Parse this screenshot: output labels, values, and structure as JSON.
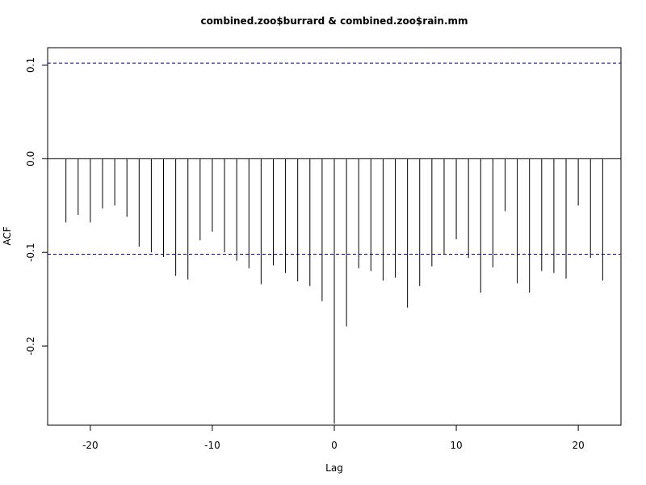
{
  "chart_data": {
    "type": "bar",
    "title": "combined.zoo$burrard & combined.zoo$rain.mm",
    "xlabel": "Lag",
    "ylabel": "ACF",
    "xlim": [
      -23.5,
      23.5
    ],
    "ylim": [
      -0.2845,
      0.1185
    ],
    "x_ticks": [
      -20,
      -10,
      0,
      10,
      20
    ],
    "x_tick_labels": [
      "-20",
      "-10",
      "0",
      "10",
      "20"
    ],
    "y_ticks": [
      -0.2,
      -0.1,
      0.0,
      0.1
    ],
    "y_tick_labels": [
      "-0.2",
      "-0.1",
      "0.0",
      "0.1"
    ],
    "confidence_bound": 0.102,
    "confidence_color": "#0000aa",
    "line_color": "#000000",
    "lags": [
      -22,
      -21,
      -20,
      -19,
      -18,
      -17,
      -16,
      -15,
      -14,
      -13,
      -12,
      -11,
      -10,
      -9,
      -8,
      -7,
      -6,
      -5,
      -4,
      -3,
      -2,
      -1,
      0,
      1,
      2,
      3,
      4,
      5,
      6,
      7,
      8,
      9,
      10,
      11,
      12,
      13,
      14,
      15,
      16,
      17,
      18,
      19,
      20,
      21,
      22
    ],
    "values": [
      -0.068,
      -0.06,
      -0.068,
      -0.053,
      -0.05,
      -0.062,
      -0.094,
      -0.1,
      -0.105,
      -0.125,
      -0.129,
      -0.087,
      -0.078,
      -0.1,
      -0.109,
      -0.117,
      -0.134,
      -0.114,
      -0.122,
      -0.131,
      -0.136,
      -0.152,
      -0.283,
      -0.179,
      -0.117,
      -0.12,
      -0.13,
      -0.127,
      -0.159,
      -0.136,
      -0.115,
      -0.102,
      -0.086,
      -0.106,
      -0.143,
      -0.116,
      -0.056,
      -0.133,
      -0.143,
      -0.12,
      -0.122,
      -0.128,
      -0.05,
      -0.106,
      -0.13
    ]
  }
}
